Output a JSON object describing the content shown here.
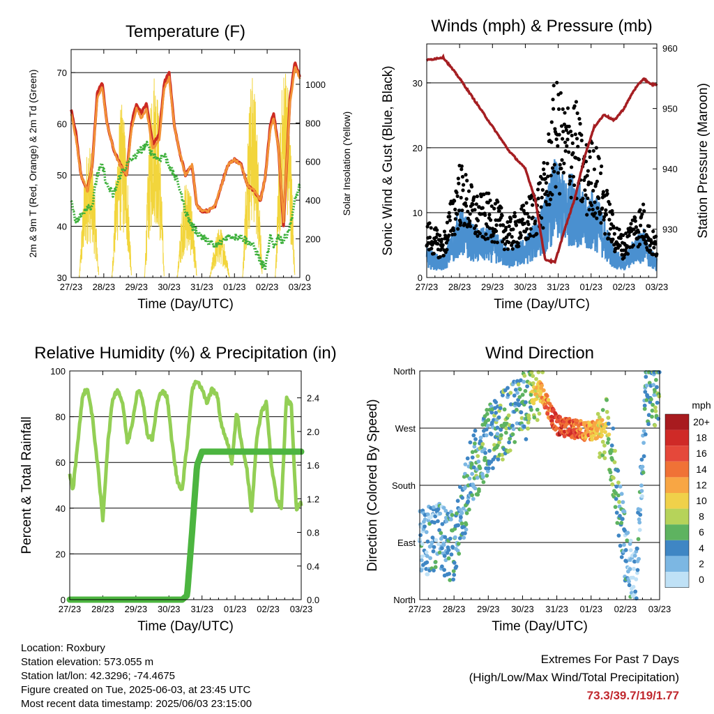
{
  "x_ticks": [
    "27/23",
    "28/23",
    "29/23",
    "30/23",
    "31/23",
    "01/23",
    "02/23",
    "03/23"
  ],
  "x_label": "Time (Day/UTC)",
  "chart_data": [
    {
      "type": "line",
      "title": "Temperature (F)",
      "xlabel": "Time (Day/UTC)",
      "ylabel": "2m & 9m T (Red, Orange) & 2m Td (Green)",
      "ylabel_right": "Solar Insolation (Yellow)",
      "ylim": [
        30,
        74.5
      ],
      "yticks": [
        30,
        40,
        50,
        60,
        70
      ],
      "ylim_right": [
        0,
        1180
      ],
      "yticks_right": [
        0,
        200,
        400,
        600,
        800,
        1000
      ],
      "x": [
        0,
        0.15,
        0.3,
        0.5,
        0.65,
        0.8,
        0.95,
        1.1,
        1.3,
        1.5,
        1.7,
        1.85,
        2.0,
        2.15,
        2.3,
        2.5,
        2.7,
        2.85,
        3.0,
        3.15,
        3.3,
        3.5,
        3.7,
        3.85,
        4.0,
        4.2,
        4.4,
        4.6,
        4.8,
        5.0,
        5.2,
        5.4,
        5.6,
        5.8,
        5.95,
        6.1,
        6.2,
        6.35,
        6.5,
        6.7,
        6.85,
        7.0
      ],
      "series": [
        {
          "name": "2m T",
          "color": "#cc2a22",
          "values": [
            63,
            58,
            50,
            47,
            52,
            66,
            68,
            60,
            55,
            52,
            50,
            60,
            64,
            62,
            64,
            56,
            58,
            68,
            70,
            60,
            55,
            50,
            52,
            44,
            43,
            43,
            44,
            48,
            52,
            53,
            52,
            48,
            47,
            45,
            50,
            60,
            62,
            55,
            40,
            65,
            72,
            69
          ]
        },
        {
          "name": "9m T",
          "color": "#f39237",
          "values": [
            62,
            57,
            50,
            47,
            52,
            65,
            67,
            60,
            55,
            52,
            50,
            59,
            63,
            61,
            63,
            55,
            57,
            67,
            69,
            60,
            55,
            50,
            52,
            44,
            43,
            43,
            44,
            48,
            52,
            53,
            52,
            48,
            47,
            45,
            50,
            59,
            61,
            55,
            41,
            64,
            71,
            69
          ]
        },
        {
          "name": "2m Td",
          "color": "#3db03b",
          "values": [
            45,
            41,
            42,
            44,
            44,
            50,
            52,
            48,
            46,
            50,
            52,
            53,
            54,
            55,
            56,
            54,
            53,
            54,
            52,
            50,
            48,
            43,
            40,
            39,
            38,
            37,
            36,
            37,
            38,
            38,
            38,
            37,
            36,
            33,
            32,
            38,
            36,
            38,
            37,
            40,
            45,
            48
          ]
        }
      ],
      "insolation": {
        "name": "Solar Insolation",
        "color": "#f2d53c",
        "days": [
          {
            "center": 0.55,
            "peak": 700
          },
          {
            "center": 1.55,
            "peak": 900
          },
          {
            "center": 2.55,
            "peak": 1100
          },
          {
            "center": 3.55,
            "peak": 520
          },
          {
            "center": 4.55,
            "peak": 260
          },
          {
            "center": 5.55,
            "peak": 1050
          },
          {
            "center": 6.55,
            "peak": 1130
          }
        ]
      }
    },
    {
      "type": "scatter",
      "title": "Winds (mph) & Pressure (mb)",
      "xlabel": "Time (Day/UTC)",
      "ylabel": "Sonic Wind & Gust (Blue, Black)",
      "ylabel_right": "Station Pressure (Maroon)",
      "ylim": [
        0,
        36
      ],
      "yticks": [
        0,
        10,
        20,
        30
      ],
      "ylim_right": [
        922,
        960.7
      ],
      "yticks_right": [
        930,
        940,
        950,
        960
      ],
      "x": [
        0,
        0.5,
        1,
        1.5,
        2,
        2.5,
        3,
        3.3,
        3.6,
        3.9,
        4.2,
        4.5,
        4.8,
        5.1,
        5.4,
        5.7,
        6.0,
        6.3,
        6.6,
        6.8,
        7.0
      ],
      "wind_mean": [
        3,
        2,
        7,
        5,
        5,
        3,
        4,
        6,
        8,
        12,
        10,
        11,
        8,
        9,
        6,
        3,
        2,
        4,
        5,
        3,
        2
      ],
      "gust": [
        7,
        5,
        14,
        10,
        10,
        7,
        9,
        11,
        14,
        24,
        21,
        22,
        16,
        17,
        12,
        7,
        5,
        8,
        9,
        6,
        5
      ],
      "wind_color": "#4a90d0",
      "gust_color": "#000000",
      "pressure": {
        "name": "Station Pressure",
        "color": "#a51e22",
        "values": [
          958,
          958.5,
          955,
          951,
          947,
          943,
          940,
          935,
          925,
          924.5,
          930,
          935,
          942,
          947,
          949,
          948,
          950,
          953,
          955,
          954,
          954
        ]
      }
    },
    {
      "type": "line",
      "title": "Relative Humidity (%) & Precipitation (in)",
      "xlabel": "Time (Day/UTC)",
      "ylabel": "Percent & Total Rainfall",
      "ylim": [
        0,
        100
      ],
      "yticks": [
        0,
        20,
        40,
        60,
        80,
        100
      ],
      "ylim_right": [
        0,
        2.72
      ],
      "yticks_right": [
        0.0,
        0.4,
        0.8,
        1.2,
        1.6,
        2.0,
        2.4
      ],
      "x": [
        0,
        0.1,
        0.25,
        0.4,
        0.55,
        0.7,
        0.85,
        1.0,
        1.15,
        1.3,
        1.45,
        1.6,
        1.75,
        1.9,
        2.05,
        2.2,
        2.35,
        2.5,
        2.65,
        2.8,
        2.95,
        3.1,
        3.25,
        3.4,
        3.55,
        3.7,
        3.85,
        4.0,
        4.15,
        4.3,
        4.45,
        4.6,
        4.75,
        4.9,
        5.05,
        5.2,
        5.35,
        5.5,
        5.65,
        5.8,
        5.95,
        6.1,
        6.25,
        6.4,
        6.55,
        6.7,
        6.85,
        7.0
      ],
      "series": [
        {
          "name": "Relative Humidity",
          "color": "#93cf55",
          "values": [
            55,
            48,
            70,
            90,
            92,
            78,
            58,
            35,
            68,
            88,
            92,
            86,
            68,
            78,
            92,
            88,
            72,
            70,
            86,
            92,
            88,
            68,
            52,
            48,
            68,
            92,
            96,
            92,
            86,
            92,
            90,
            75,
            70,
            60,
            82,
            68,
            58,
            38,
            70,
            82,
            86,
            58,
            45,
            40,
            88,
            85,
            40,
            42
          ]
        },
        {
          "name": "Total Rainfall",
          "color": "#4cb540",
          "axis": "right",
          "values": [
            0,
            0,
            0,
            0,
            0,
            0,
            0,
            0,
            0,
            0,
            0,
            0,
            0,
            0,
            0,
            0,
            0,
            0,
            0,
            0,
            0,
            0,
            0,
            0,
            0.05,
            0.8,
            1.6,
            1.76,
            1.76,
            1.76,
            1.76,
            1.76,
            1.76,
            1.76,
            1.76,
            1.76,
            1.76,
            1.76,
            1.76,
            1.76,
            1.76,
            1.76,
            1.76,
            1.76,
            1.76,
            1.76,
            1.76,
            1.76
          ]
        }
      ]
    },
    {
      "type": "scatter",
      "title": "Wind Direction",
      "xlabel": "Time (Day/UTC)",
      "ylabel": "Direction (Colored By Speed)",
      "yticks": [
        "North",
        "East",
        "South",
        "West",
        "North"
      ],
      "ylim": [
        0,
        360
      ],
      "x": [
        0,
        0.5,
        1,
        1.5,
        2,
        2.5,
        3,
        3.5,
        4,
        4.5,
        5,
        5.5,
        6,
        6.3,
        6.6,
        7
      ],
      "direction": [
        90,
        100,
        80,
        200,
        250,
        280,
        300,
        330,
        275,
        268,
        265,
        270,
        80,
        30,
        320,
        330
      ],
      "speed": [
        2,
        3,
        4,
        4,
        5,
        6,
        5,
        10,
        17,
        15,
        12,
        8,
        3,
        2,
        4,
        6
      ],
      "colorbar": {
        "title": "mph",
        "labels": [
          "20+",
          "18",
          "16",
          "14",
          "12",
          "10",
          "8",
          "6",
          "4",
          "2",
          "0"
        ],
        "colors": [
          "#a81b1f",
          "#cf2a27",
          "#e5483a",
          "#f07236",
          "#f8a644",
          "#f0d14a",
          "#b6d35a",
          "#5eb360",
          "#3f86c4",
          "#7cb7e3",
          "#bfe1f6"
        ]
      }
    }
  ],
  "station": {
    "location": "Location: Roxbury",
    "elevation": "Station elevation: 573.055 m",
    "latlon": "Station lat/lon: 42.3296; -74.4675",
    "created": "Figure created on Tue, 2025-06-03, at 23:45 UTC",
    "recent": "Most recent data timestamp: 2025/06/03 23:15:00"
  },
  "extremes": {
    "heading": "Extremes For Past 7 Days",
    "subheading": "(High/Low/Max Wind/Total Precipitation)",
    "values": "73.3/39.7/19/1.77",
    "color": "#c0272d"
  }
}
